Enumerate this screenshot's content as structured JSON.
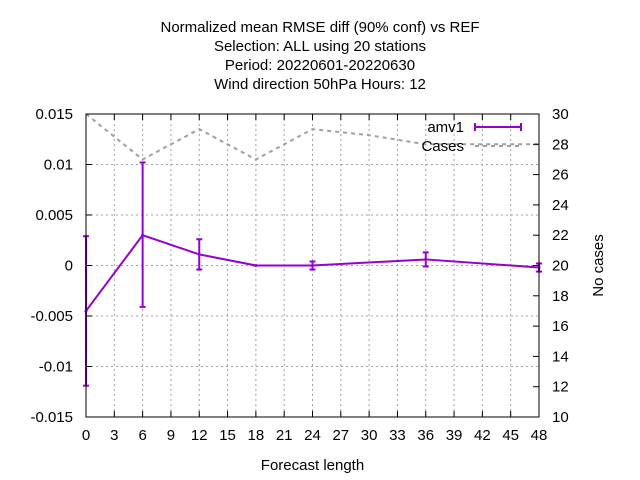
{
  "chart_data": {
    "type": "line",
    "title_lines": [
      "Normalized mean RMSE diff (90% conf) vs REF",
      "Selection: ALL using    20 stations",
      "Period: 20220601-20220630",
      "Wind direction 50hPa   Hours:  12"
    ],
    "xlabel": "Forecast length",
    "ylabel": "",
    "y2label": "No cases",
    "xlim": [
      0,
      48
    ],
    "ylim": [
      -0.015,
      0.015
    ],
    "y2lim": [
      10,
      30
    ],
    "xticks": [
      0,
      3,
      6,
      9,
      12,
      15,
      18,
      21,
      24,
      27,
      30,
      33,
      36,
      39,
      42,
      45,
      48
    ],
    "yticks": [
      -0.015,
      -0.01,
      -0.005,
      0,
      0.005,
      0.01,
      0.015
    ],
    "ytick_labels": [
      "-0.015",
      "-0.01",
      "-0.005",
      "0",
      "0.005",
      "0.01",
      "0.015"
    ],
    "y2ticks": [
      10,
      12,
      14,
      16,
      18,
      20,
      22,
      24,
      26,
      28,
      30
    ],
    "grid": true,
    "legend_position": "top-right",
    "series": [
      {
        "name": "amv1",
        "axis": "left",
        "style": "line-errorbars",
        "color": "#9400d3",
        "x": [
          0,
          6,
          12,
          18,
          24,
          36,
          48
        ],
        "y": [
          -0.0045,
          0.003,
          0.0011,
          0.0,
          0.0,
          0.0006,
          -0.0002
        ],
        "y_low": [
          -0.0119,
          -0.0041,
          -0.0004,
          0.0,
          -0.0004,
          -0.0001,
          -0.0006
        ],
        "y_high": [
          0.0029,
          0.0102,
          0.0026,
          0.0,
          0.0004,
          0.0013,
          0.0002
        ]
      },
      {
        "name": "Cases",
        "axis": "right",
        "style": "dashed",
        "color": "#a0a0a0",
        "x": [
          0,
          6,
          12,
          18,
          24,
          30,
          36,
          42,
          48
        ],
        "y": [
          30,
          27,
          29,
          27,
          29,
          28.6,
          28,
          28,
          28
        ]
      }
    ]
  }
}
